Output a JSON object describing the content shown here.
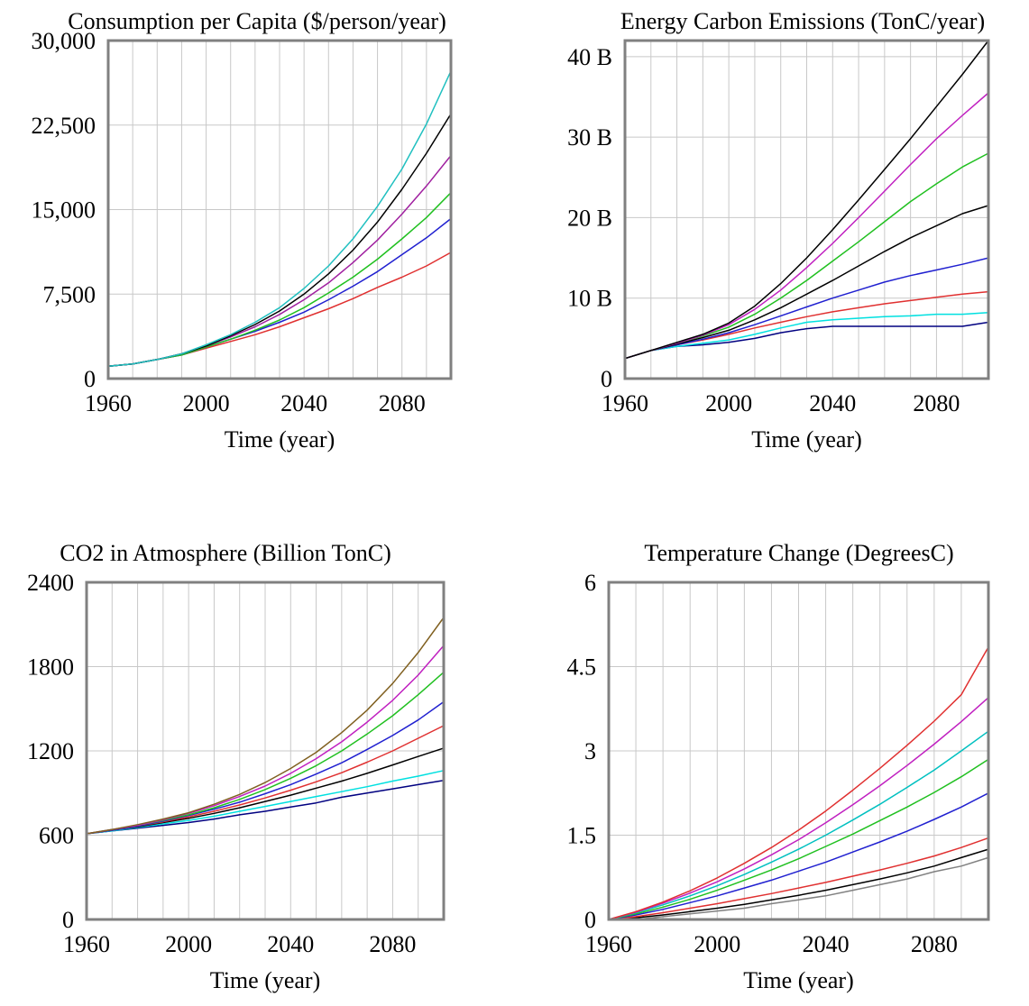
{
  "chart_data": [
    {
      "type": "line",
      "title": "Consumption per Capita ($/person/year)",
      "xlabel": "Time (year)",
      "ylabel": "",
      "xlim": [
        1960,
        2100
      ],
      "ylim": [
        0,
        30000
      ],
      "x_ticks": [
        1960,
        2000,
        2040,
        2080
      ],
      "x_tick_labels": [
        "1960",
        "2000",
        "2040",
        "2080"
      ],
      "y_ticks": [
        0,
        7500,
        15000,
        22500,
        30000
      ],
      "y_tick_labels": [
        "0",
        "7,500",
        "15,000",
        "22,500",
        "30,000"
      ],
      "grid": true,
      "x": [
        1960,
        1970,
        1980,
        1990,
        2000,
        2010,
        2020,
        2030,
        2040,
        2050,
        2060,
        2070,
        2080,
        2090,
        2100
      ],
      "series": [
        {
          "values": [
            1100,
            1300,
            1700,
            2100,
            2700,
            3300,
            3900,
            4600,
            5400,
            6200,
            7100,
            8100,
            9000,
            10000,
            11200
          ]
        },
        {
          "values": [
            1100,
            1300,
            1700,
            2100,
            2800,
            3500,
            4200,
            5000,
            5900,
            7000,
            8200,
            9500,
            11000,
            12500,
            14200
          ]
        },
        {
          "values": [
            1100,
            1300,
            1700,
            2100,
            2800,
            3500,
            4300,
            5200,
            6300,
            7600,
            9000,
            10600,
            12400,
            14300,
            16500
          ]
        },
        {
          "values": [
            1100,
            1300,
            1700,
            2200,
            2900,
            3700,
            4600,
            5700,
            7000,
            8500,
            10300,
            12300,
            14600,
            17100,
            19800
          ]
        },
        {
          "values": [
            1100,
            1300,
            1700,
            2200,
            2900,
            3800,
            4800,
            6000,
            7500,
            9300,
            11400,
            13900,
            16800,
            20000,
            23500
          ]
        },
        {
          "values": [
            1100,
            1300,
            1700,
            2200,
            3000,
            3900,
            5000,
            6300,
            8000,
            10000,
            12400,
            15300,
            18600,
            22600,
            27300
          ]
        }
      ],
      "series_colors": [
        "#e03030",
        "#2020d0",
        "#20c020",
        "#a020a0",
        "#000000",
        "#20c0c0"
      ]
    },
    {
      "type": "line",
      "title": "Energy Carbon Emissions (TonC/year)",
      "xlabel": "Time (year)",
      "ylabel": "",
      "xlim": [
        1960,
        2100
      ],
      "ylim": [
        0,
        42000000000
      ],
      "x_ticks": [
        1960,
        2000,
        2040,
        2080
      ],
      "x_tick_labels": [
        "1960",
        "2000",
        "2040",
        "2080"
      ],
      "y_ticks": [
        0,
        10000000000,
        20000000000,
        30000000000,
        40000000000
      ],
      "y_tick_labels": [
        "0",
        "10 B",
        "20 B",
        "30 B",
        "40 B"
      ],
      "grid": true,
      "x": [
        1960,
        1970,
        1980,
        1990,
        2000,
        2010,
        2020,
        2030,
        2040,
        2050,
        2060,
        2070,
        2080,
        2090,
        2100
      ],
      "series": [
        {
          "values": [
            2500000000,
            3500000000,
            4000000000,
            4200000000,
            4500000000,
            5000000000,
            5700000000,
            6200000000,
            6500000000,
            6500000000,
            6500000000,
            6500000000,
            6500000000,
            6500000000,
            7000000000
          ]
        },
        {
          "values": [
            2500000000,
            3500000000,
            4000000000,
            4400000000,
            4800000000,
            5500000000,
            6300000000,
            7000000000,
            7300000000,
            7500000000,
            7700000000,
            7800000000,
            8000000000,
            8000000000,
            8200000000
          ]
        },
        {
          "values": [
            2500000000,
            3500000000,
            4200000000,
            4800000000,
            5500000000,
            6300000000,
            7000000000,
            7700000000,
            8300000000,
            8800000000,
            9300000000,
            9700000000,
            10100000000,
            10500000000,
            10800000000
          ]
        },
        {
          "values": [
            2500000000,
            3500000000,
            4200000000,
            4900000000,
            5700000000,
            6700000000,
            7800000000,
            8900000000,
            10000000000,
            11000000000,
            12000000000,
            12800000000,
            13500000000,
            14200000000,
            15000000000
          ]
        },
        {
          "values": [
            2500000000,
            3500000000,
            4300000000,
            5100000000,
            6000000000,
            7300000000,
            8800000000,
            10500000000,
            12200000000,
            14000000000,
            15800000000,
            17500000000,
            19000000000,
            20500000000,
            21500000000
          ]
        },
        {
          "values": [
            2500000000,
            3500000000,
            4400000000,
            5300000000,
            6400000000,
            8000000000,
            10000000000,
            12200000000,
            14600000000,
            17000000000,
            19500000000,
            22000000000,
            24200000000,
            26300000000,
            28000000000
          ]
        },
        {
          "values": [
            2500000000,
            3500000000,
            4400000000,
            5400000000,
            6700000000,
            8600000000,
            11000000000,
            13800000000,
            16800000000,
            20000000000,
            23300000000,
            26600000000,
            29800000000,
            32700000000,
            35500000000
          ]
        },
        {
          "values": [
            2500000000,
            3500000000,
            4500000000,
            5500000000,
            6900000000,
            9000000000,
            11800000000,
            15000000000,
            18500000000,
            22200000000,
            26000000000,
            29800000000,
            33800000000,
            37800000000,
            42000000000
          ]
        }
      ],
      "series_colors": [
        "#000080",
        "#00e0e0",
        "#e03030",
        "#2020d0",
        "#000000",
        "#20c020",
        "#c020c0",
        "#000000"
      ]
    },
    {
      "type": "line",
      "title": "CO2 in Atmosphere (Billion TonC)",
      "xlabel": "Time (year)",
      "ylabel": "",
      "xlim": [
        1960,
        2100
      ],
      "ylim": [
        0,
        2400
      ],
      "x_ticks": [
        1960,
        2000,
        2040,
        2080
      ],
      "x_tick_labels": [
        "1960",
        "2000",
        "2040",
        "2080"
      ],
      "y_ticks": [
        0,
        600,
        1200,
        1800,
        2400
      ],
      "y_tick_labels": [
        "0",
        "600",
        "1200",
        "1800",
        "2400"
      ],
      "grid": true,
      "x": [
        1960,
        1970,
        1980,
        1990,
        2000,
        2010,
        2020,
        2030,
        2040,
        2050,
        2060,
        2070,
        2080,
        2090,
        2100
      ],
      "series": [
        {
          "values": [
            610,
            630,
            650,
            670,
            690,
            715,
            745,
            770,
            800,
            830,
            870,
            900,
            930,
            960,
            990
          ]
        },
        {
          "values": [
            610,
            630,
            655,
            680,
            705,
            735,
            770,
            805,
            840,
            875,
            910,
            945,
            985,
            1020,
            1060
          ]
        },
        {
          "values": [
            610,
            635,
            660,
            690,
            720,
            755,
            795,
            840,
            885,
            935,
            985,
            1040,
            1100,
            1160,
            1220
          ]
        },
        {
          "values": [
            610,
            635,
            665,
            695,
            730,
            770,
            815,
            865,
            920,
            980,
            1045,
            1120,
            1200,
            1290,
            1380
          ]
        },
        {
          "values": [
            610,
            635,
            665,
            700,
            740,
            785,
            835,
            895,
            960,
            1035,
            1115,
            1210,
            1310,
            1420,
            1550
          ]
        },
        {
          "values": [
            610,
            640,
            670,
            705,
            745,
            795,
            855,
            925,
            1005,
            1095,
            1200,
            1320,
            1450,
            1600,
            1760
          ]
        },
        {
          "values": [
            610,
            640,
            670,
            710,
            755,
            810,
            875,
            950,
            1040,
            1145,
            1265,
            1405,
            1560,
            1740,
            1950
          ]
        },
        {
          "values": [
            610,
            640,
            675,
            715,
            760,
            820,
            890,
            975,
            1075,
            1190,
            1330,
            1490,
            1680,
            1900,
            2150
          ]
        }
      ],
      "series_colors": [
        "#000080",
        "#00e0e0",
        "#000000",
        "#e03030",
        "#2020d0",
        "#20c020",
        "#c020c0",
        "#806020"
      ]
    },
    {
      "type": "line",
      "title": "Temperature Change (DegreesC)",
      "xlabel": "Time (year)",
      "ylabel": "",
      "xlim": [
        1960,
        2100
      ],
      "ylim": [
        0,
        6
      ],
      "x_ticks": [
        1960,
        2000,
        2040,
        2080
      ],
      "x_tick_labels": [
        "1960",
        "2000",
        "2040",
        "2080"
      ],
      "y_ticks": [
        0,
        1.5,
        3,
        4.5,
        6
      ],
      "y_tick_labels": [
        "0",
        "1.5",
        "3",
        "4.5",
        "6"
      ],
      "grid": true,
      "x": [
        1960,
        1970,
        1980,
        1990,
        2000,
        2010,
        2020,
        2030,
        2040,
        2050,
        2060,
        2070,
        2080,
        2090,
        2100
      ],
      "series": [
        {
          "values": [
            0,
            0,
            0.05,
            0.1,
            0.15,
            0.2,
            0.28,
            0.35,
            0.42,
            0.52,
            0.62,
            0.72,
            0.85,
            0.95,
            1.1
          ]
        },
        {
          "values": [
            0,
            0.03,
            0.08,
            0.14,
            0.2,
            0.27,
            0.35,
            0.43,
            0.52,
            0.62,
            0.72,
            0.83,
            0.95,
            1.1,
            1.25
          ]
        },
        {
          "values": [
            0,
            0.05,
            0.12,
            0.2,
            0.28,
            0.37,
            0.46,
            0.56,
            0.66,
            0.77,
            0.88,
            1.0,
            1.13,
            1.28,
            1.45
          ]
        },
        {
          "values": [
            0,
            0.08,
            0.18,
            0.3,
            0.42,
            0.56,
            0.7,
            0.86,
            1.02,
            1.2,
            1.38,
            1.57,
            1.78,
            2.0,
            2.25
          ]
        },
        {
          "values": [
            0,
            0.1,
            0.22,
            0.36,
            0.52,
            0.7,
            0.88,
            1.08,
            1.3,
            1.52,
            1.76,
            2.0,
            2.26,
            2.54,
            2.85
          ]
        },
        {
          "values": [
            0,
            0.12,
            0.26,
            0.42,
            0.6,
            0.8,
            1.02,
            1.25,
            1.5,
            1.77,
            2.05,
            2.35,
            2.66,
            3.0,
            3.35
          ]
        },
        {
          "values": [
            0,
            0.13,
            0.29,
            0.47,
            0.67,
            0.9,
            1.15,
            1.42,
            1.72,
            2.04,
            2.38,
            2.74,
            3.12,
            3.52,
            3.95
          ]
        },
        {
          "values": [
            0,
            0.14,
            0.31,
            0.51,
            0.74,
            1.0,
            1.28,
            1.59,
            1.93,
            2.3,
            2.69,
            3.1,
            3.53,
            4.0,
            4.85
          ]
        }
      ],
      "series_colors": [
        "#808080",
        "#000000",
        "#e03030",
        "#2020d0",
        "#20c020",
        "#00c0c0",
        "#c020c0",
        "#e03030"
      ]
    }
  ]
}
